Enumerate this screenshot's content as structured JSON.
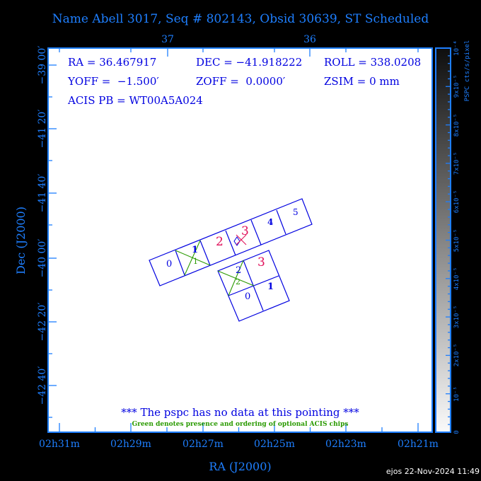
{
  "title": "Name Abell 3017, Seq # 802143, Obsid 30639, ST Scheduled",
  "info": {
    "ra": "RA = 36.467917",
    "dec": "DEC = −41.918222",
    "roll": "ROLL = 338.0208",
    "yoff": "YOFF =  −1.500′",
    "zoff": "ZOFF =  0.0000′",
    "zsim": "ZSIM = 0 mm",
    "acis_pb": "ACIS PB = WT00A5A024"
  },
  "axes": {
    "xlabel": "RA (J2000)",
    "ylabel": "Dec (J2000)",
    "x_ticks": [
      "02h31m",
      "02h29m",
      "02h27m",
      "02h25m",
      "02h23m",
      "02h21m"
    ],
    "top_ticks": [
      "37",
      "36"
    ],
    "y_ticks": [
      "−39 00′",
      "−41 20′",
      "−41 40′",
      "−40 00′",
      "−42 20′",
      "−42 40′"
    ]
  },
  "colorbar": {
    "label": "PSPC cts/s/pixel",
    "ticks": [
      "0",
      "10⁻⁵",
      "2x10⁻⁵",
      "3x10⁻⁵",
      "4x10⁻⁵",
      "5x10⁻⁵",
      "6x10⁻⁵",
      "7x10⁻⁵",
      "8x10⁻⁵",
      "9x10⁻⁵",
      "10⁻⁴"
    ]
  },
  "chips": {
    "acis_s": [
      "0",
      "1",
      "2",
      "3",
      "4",
      "5"
    ],
    "acis_i": [
      "0",
      "1",
      "2",
      "3"
    ],
    "optional_labels": [
      "1",
      "2"
    ]
  },
  "colors": {
    "frame": "#1e7fff",
    "chip": "#0000e0",
    "optional": "#2a9a00",
    "target": "#e0105a"
  },
  "message": "*** The pspc has no data at this pointing ***",
  "legend_note": "Green denotes presence and ordering of optional ACIS chips",
  "footer": "ejos 22-Nov-2024 11:49"
}
